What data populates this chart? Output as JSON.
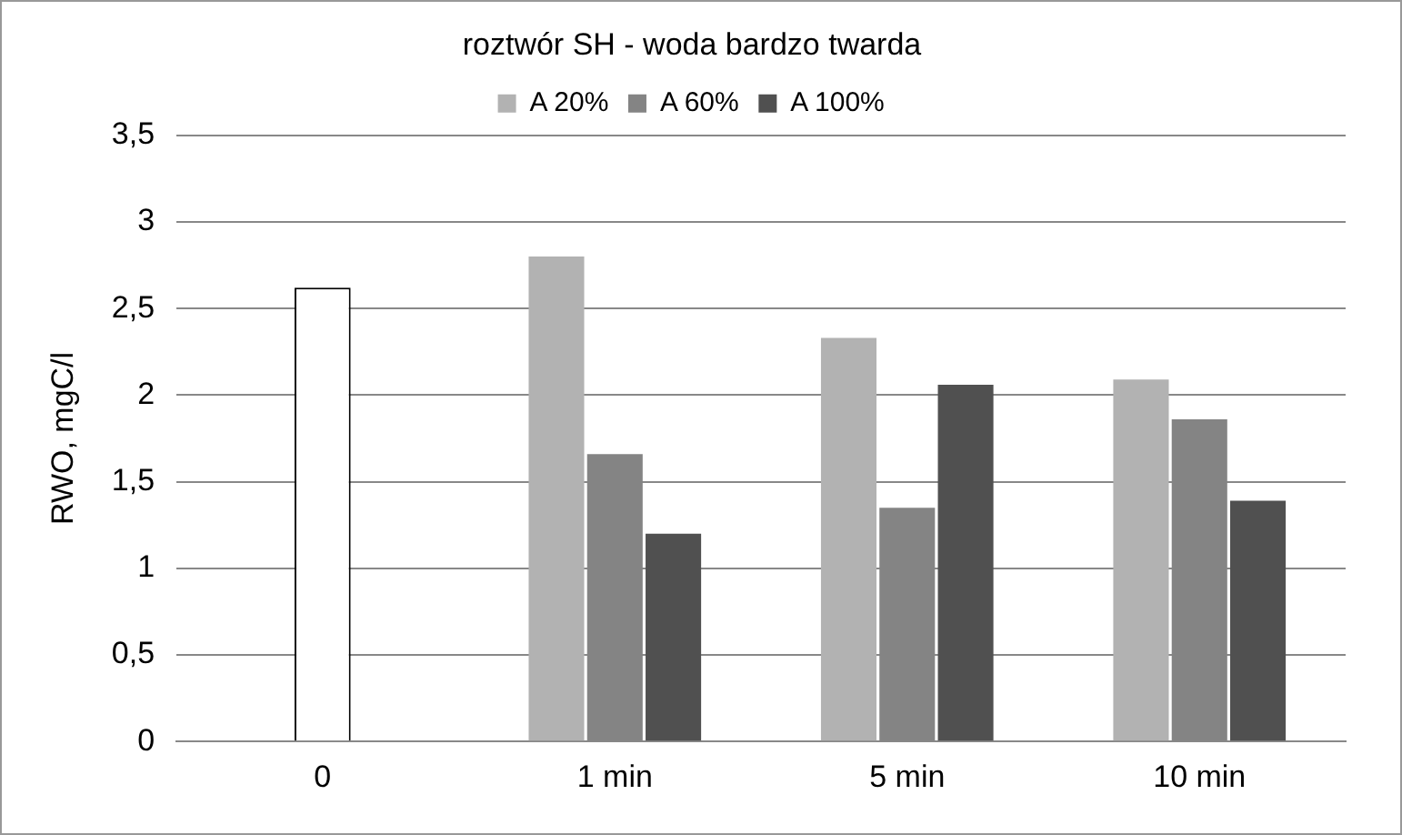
{
  "chart_data": {
    "type": "bar",
    "title": "roztwór SH - woda bardzo twarda",
    "ylabel": "RWO, mgC/l",
    "categories": [
      "0",
      "1 min",
      "5 min",
      "10 min"
    ],
    "series": [
      {
        "color": "#ffffff",
        "values": [
          2.62,
          null,
          null,
          null
        ]
      },
      {
        "name": "A 20%",
        "color": "#b2b2b2",
        "values": [
          null,
          2.8,
          2.33,
          2.09
        ]
      },
      {
        "name": "A 60%",
        "color": "#848484",
        "values": [
          null,
          1.66,
          1.35,
          1.86
        ]
      },
      {
        "name": "A 100%",
        "color": "#505050",
        "values": [
          null,
          1.2,
          2.06,
          1.39
        ]
      }
    ],
    "ylim": [
      0,
      3.5
    ],
    "yticks": [
      0,
      {
        "value": 0.5,
        "label": "0,5"
      },
      1,
      {
        "value": 1.5,
        "label": "1,5"
      },
      2,
      {
        "value": 2.5,
        "label": "2,5"
      },
      3,
      {
        "value": 3.5,
        "label": "3,5"
      }
    ],
    "grid": "y",
    "legend": "top"
  }
}
